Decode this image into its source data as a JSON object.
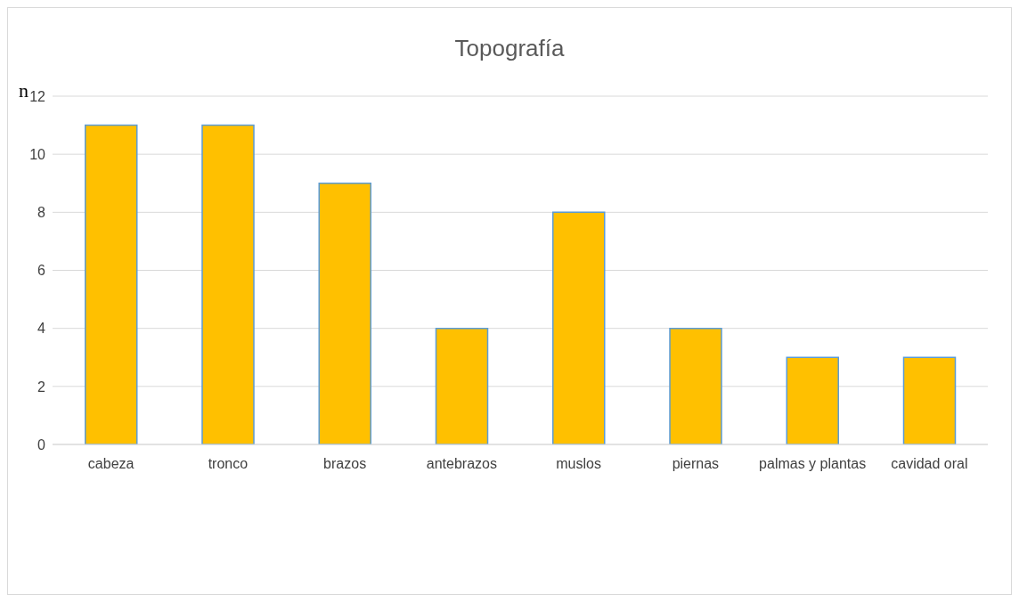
{
  "chart_data": {
    "type": "bar",
    "title": "Topografía",
    "ylabel": "n",
    "categories": [
      "cabeza",
      "tronco",
      "brazos",
      "antebrazos",
      "muslos",
      "piernas",
      "palmas y plantas",
      "cavidad oral"
    ],
    "values": [
      11,
      11,
      9,
      4,
      8,
      4,
      3,
      3
    ],
    "color": "#ffc000",
    "ylim": [
      0,
      12
    ],
    "yticks": [
      0,
      2,
      4,
      6,
      8,
      10,
      12
    ],
    "grid": "y",
    "legend": false
  }
}
